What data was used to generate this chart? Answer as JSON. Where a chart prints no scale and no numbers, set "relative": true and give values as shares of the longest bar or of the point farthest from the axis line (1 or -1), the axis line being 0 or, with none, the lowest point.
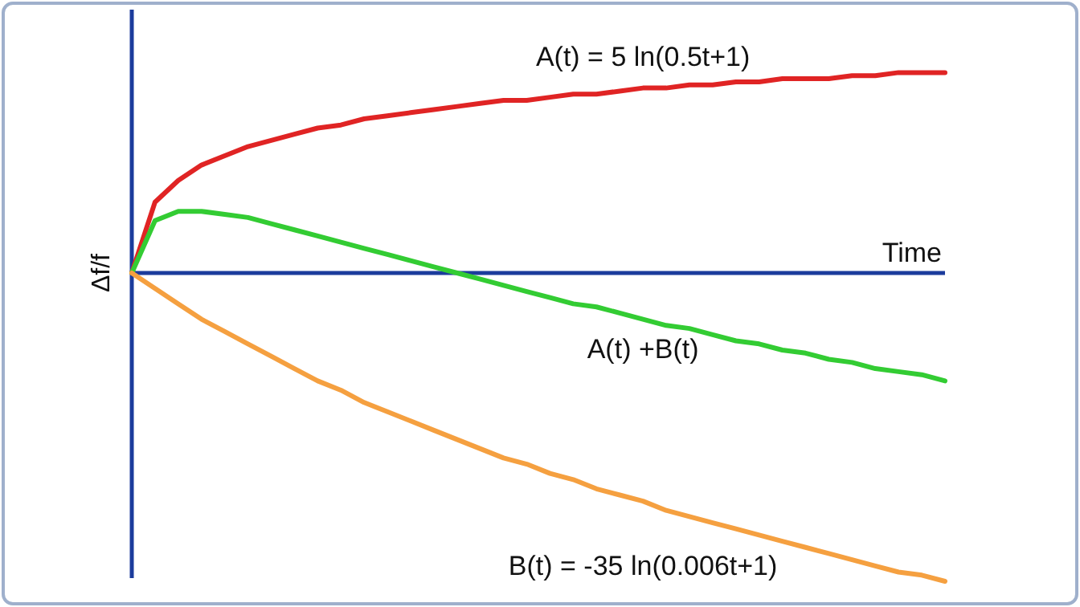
{
  "chart_data": {
    "type": "line",
    "relative": true,
    "xlabel": "Time",
    "ylabel": "Δf/f",
    "ref_lines": [
      {
        "axis": "y",
        "value": 0,
        "color": "#1c3c9c"
      }
    ],
    "categories": [
      null,
      null,
      null,
      null,
      null,
      null,
      null,
      null,
      null,
      null,
      null,
      null,
      null,
      null,
      null,
      null,
      null,
      null,
      null,
      null,
      null,
      null,
      null,
      null,
      null,
      null,
      null,
      null,
      null,
      null,
      null,
      null,
      null,
      null,
      null,
      null
    ],
    "series": [
      {
        "name": "A(t) = 5 ln(0.5t+1)",
        "color": "#e02424",
        "values": [
          0,
          0.23,
          0.3,
          0.35,
          0.38,
          0.41,
          0.43,
          0.45,
          0.47,
          0.48,
          0.5,
          0.51,
          0.52,
          0.53,
          0.54,
          0.55,
          0.56,
          0.56,
          0.57,
          0.58,
          0.58,
          0.59,
          0.6,
          0.6,
          0.61,
          0.61,
          0.62,
          0.62,
          0.63,
          0.63,
          0.63,
          0.64,
          0.64,
          0.65,
          0.65,
          0.65
        ]
      },
      {
        "name": "A(t) +B(t)",
        "color": "#33cc33",
        "values": [
          0,
          0.17,
          0.2,
          0.2,
          0.19,
          0.18,
          0.16,
          0.14,
          0.12,
          0.1,
          0.08,
          0.06,
          0.04,
          0.02,
          0,
          -0.02,
          -0.04,
          -0.06,
          -0.08,
          -0.1,
          -0.11,
          -0.13,
          -0.15,
          -0.17,
          -0.18,
          -0.2,
          -0.22,
          -0.23,
          -0.25,
          -0.26,
          -0.28,
          -0.29,
          -0.31,
          -0.32,
          -0.33,
          -0.35
        ]
      },
      {
        "name": "B(t) = -35 ln(0.006t+1)",
        "color": "#f5a040",
        "values": [
          0,
          -0.05,
          -0.1,
          -0.15,
          -0.19,
          -0.23,
          -0.27,
          -0.31,
          -0.35,
          -0.38,
          -0.42,
          -0.45,
          -0.48,
          -0.51,
          -0.54,
          -0.57,
          -0.6,
          -0.62,
          -0.65,
          -0.67,
          -0.7,
          -0.72,
          -0.74,
          -0.77,
          -0.79,
          -0.81,
          -0.83,
          -0.85,
          -0.87,
          -0.89,
          -0.91,
          -0.93,
          -0.95,
          -0.97,
          -0.98,
          -1
        ]
      }
    ]
  }
}
